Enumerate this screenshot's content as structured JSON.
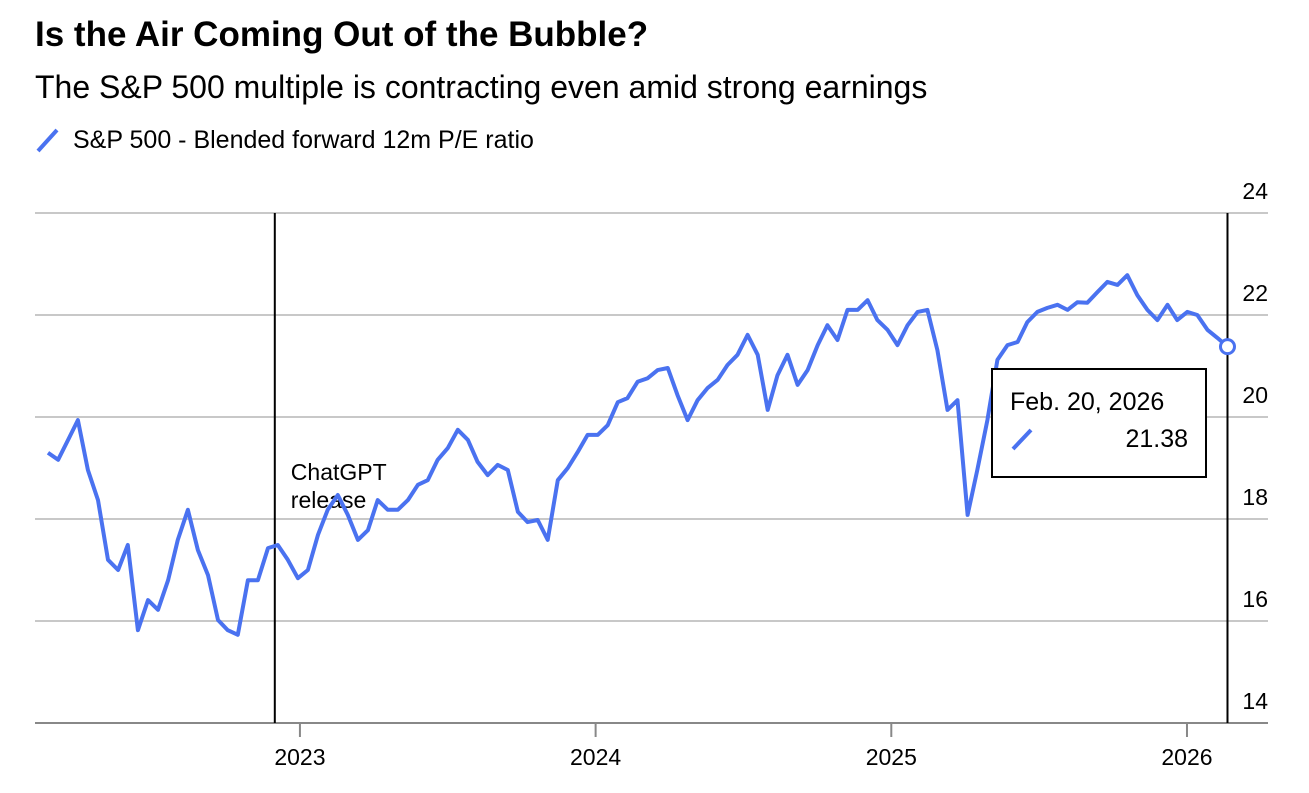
{
  "chart_data": {
    "type": "line",
    "title": "Is the Air Coming Out of the Bubble?",
    "subtitle": "The S&P 500 multiple is contracting even amid strong earnings",
    "xlim": [
      2022.104,
      2026.274
    ],
    "xticks": [
      2023,
      2024,
      2025,
      2026
    ],
    "ylim": [
      14,
      24
    ],
    "yticks": [
      14,
      16,
      18,
      20,
      22,
      24
    ],
    "grid": true,
    "x": [
      2022.148,
      2022.182,
      2022.216,
      2022.249,
      2022.283,
      2022.317,
      2022.351,
      2022.385,
      2022.418,
      2022.452,
      2022.486,
      2022.52,
      2022.554,
      2022.587,
      2022.621,
      2022.655,
      2022.689,
      2022.723,
      2022.756,
      2022.79,
      2022.824,
      2022.858,
      2022.892,
      2022.925,
      2022.959,
      2022.993,
      2023.027,
      2023.061,
      2023.094,
      2023.128,
      2023.162,
      2023.196,
      2023.23,
      2023.263,
      2023.297,
      2023.331,
      2023.365,
      2023.399,
      2023.432,
      2023.466,
      2023.5,
      2023.534,
      2023.568,
      2023.601,
      2023.635,
      2023.669,
      2023.703,
      2023.737,
      2023.77,
      2023.804,
      2023.838,
      2023.872,
      2023.906,
      2023.939,
      2023.973,
      2024.007,
      2024.041,
      2024.075,
      2024.108,
      2024.142,
      2024.176,
      2024.21,
      2024.244,
      2024.277,
      2024.311,
      2024.345,
      2024.379,
      2024.413,
      2024.446,
      2024.48,
      2024.514,
      2024.548,
      2024.582,
      2024.615,
      2024.649,
      2024.683,
      2024.717,
      2024.751,
      2024.784,
      2024.818,
      2024.852,
      2024.886,
      2024.92,
      2024.953,
      2024.987,
      2025.021,
      2025.055,
      2025.089,
      2025.122,
      2025.156,
      2025.19,
      2025.224,
      2025.258,
      2025.291,
      2025.325,
      2025.359,
      2025.393,
      2025.427,
      2025.46,
      2025.494,
      2025.528,
      2025.562,
      2025.596,
      2025.629,
      2025.663,
      2025.697,
      2025.731,
      2025.765,
      2025.798,
      2025.832,
      2025.866,
      2025.9,
      2025.934,
      2025.967,
      2026.001,
      2026.035,
      2026.069,
      2026.103,
      2026.137
    ],
    "series": [
      {
        "name": "S&P 500 - Blended forward 12m P/E ratio",
        "color": "#4a72f0",
        "values": [
          19.3,
          19.16,
          19.55,
          19.94,
          18.96,
          18.37,
          17.2,
          17.0,
          17.49,
          15.82,
          16.41,
          16.22,
          16.8,
          17.59,
          18.18,
          17.39,
          16.9,
          16.02,
          15.82,
          15.73,
          16.8,
          16.8,
          17.43,
          17.49,
          17.2,
          16.84,
          17.0,
          17.69,
          18.18,
          18.47,
          18.08,
          17.59,
          17.78,
          18.37,
          18.18,
          18.18,
          18.37,
          18.67,
          18.76,
          19.16,
          19.39,
          19.75,
          19.55,
          19.12,
          18.86,
          19.06,
          18.96,
          18.14,
          17.94,
          17.98,
          17.59,
          18.76,
          19.0,
          19.31,
          19.65,
          19.65,
          19.84,
          20.29,
          20.37,
          20.69,
          20.76,
          20.92,
          20.96,
          20.43,
          19.94,
          20.33,
          20.57,
          20.73,
          21.02,
          21.22,
          21.61,
          21.22,
          20.14,
          20.82,
          21.22,
          20.63,
          20.92,
          21.41,
          21.8,
          21.51,
          22.1,
          22.1,
          22.29,
          21.9,
          21.71,
          21.41,
          21.8,
          22.06,
          22.1,
          21.31,
          20.14,
          20.33,
          18.08,
          18.96,
          19.94,
          21.12,
          21.41,
          21.47,
          21.86,
          22.06,
          22.14,
          22.2,
          22.1,
          22.25,
          22.24,
          22.45,
          22.65,
          22.59,
          22.78,
          22.39,
          22.1,
          21.9,
          22.2,
          21.9,
          22.06,
          22.0,
          21.71,
          21.55,
          21.38
        ]
      }
    ],
    "annotations": [
      {
        "x": 2022.915,
        "lines": [
          "ChatGPT",
          "release"
        ]
      }
    ],
    "tooltip": {
      "x": 2026.137,
      "label": "Feb. 20, 2026",
      "value": 21.38
    }
  }
}
